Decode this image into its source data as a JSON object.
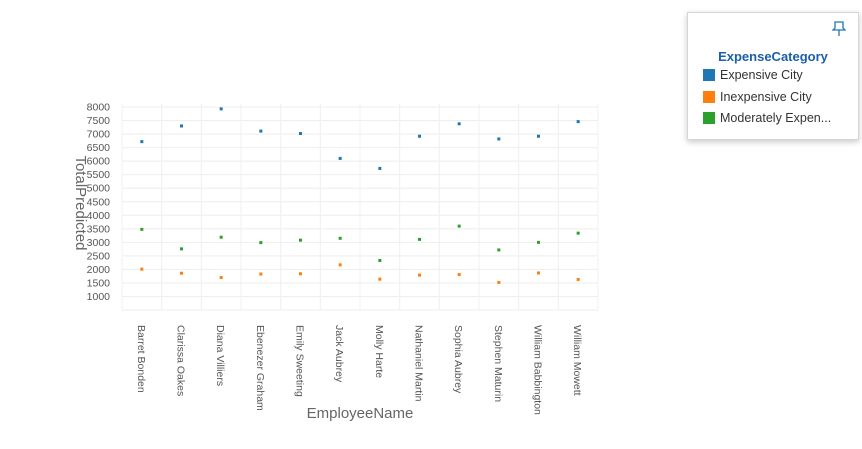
{
  "chart_data": {
    "type": "scatter",
    "xlabel": "EmployeeName",
    "ylabel": "TotalPredicted",
    "categories": [
      "Barret Bonden",
      "Clarissa Oakes",
      "Diana Villiers",
      "Ebenezer Graham",
      "Emily Sweeting",
      "Jack Aubrey",
      "Molly Harte",
      "Nathaniel Martin",
      "Sophia Aubrey",
      "Stephen Maturin",
      "William Babbington",
      "William Mowett"
    ],
    "yticks": [
      1000,
      1500,
      2000,
      2500,
      3000,
      3500,
      4000,
      4500,
      5000,
      5500,
      6000,
      6500,
      7000,
      7500,
      8000
    ],
    "ylim": [
      600,
      8000
    ],
    "grid": true,
    "legend_position": "top-right",
    "series": [
      {
        "name": "Expensive City",
        "color": "#1f77b4",
        "values": [
          6720,
          7300,
          7930,
          7110,
          7020,
          6100,
          5730,
          6920,
          7380,
          6820,
          6920,
          7460
        ]
      },
      {
        "name": "Inexpensive City",
        "color": "#ff7f0e",
        "values": [
          2010,
          1860,
          1700,
          1830,
          1840,
          2170,
          1640,
          1790,
          1810,
          1520,
          1870,
          1630
        ]
      },
      {
        "name": "Moderately Expensive City",
        "color": "#2ca02c",
        "values": [
          3480,
          2760,
          3190,
          2990,
          3080,
          3150,
          2330,
          3110,
          3600,
          2720,
          3000,
          3340
        ]
      }
    ]
  },
  "legend": {
    "title": "ExpenseCategory",
    "items": [
      {
        "label": "Expensive City",
        "color": "#1f77b4"
      },
      {
        "label": "Inexpensive City",
        "color": "#ff7f0e"
      },
      {
        "label": "Moderately Expen...",
        "color": "#2ca02c"
      }
    ]
  }
}
